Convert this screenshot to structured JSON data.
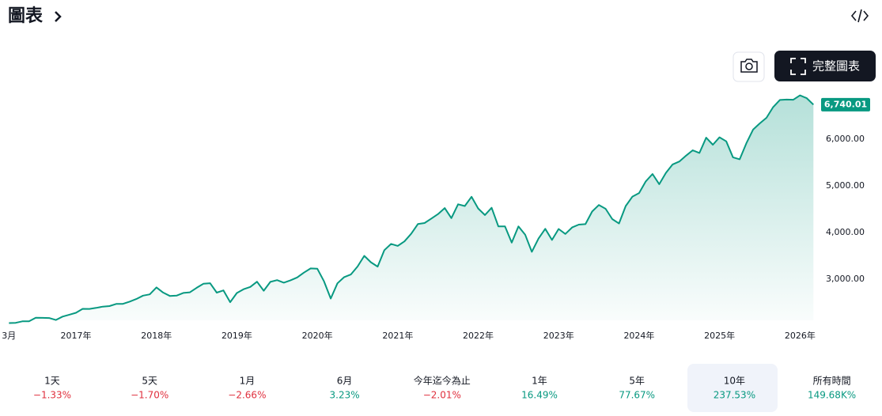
{
  "header": {
    "title": "圖表",
    "button": "完整圖表"
  },
  "chart_data": {
    "type": "area",
    "categories": [
      "3月",
      null,
      null,
      null,
      null,
      null,
      null,
      null,
      null,
      null,
      "2017年",
      null,
      null,
      null,
      null,
      null,
      null,
      null,
      null,
      null,
      null,
      null,
      "2018年",
      null,
      null,
      null,
      null,
      null,
      null,
      null,
      null,
      null,
      null,
      null,
      "2019年",
      null,
      null,
      null,
      null,
      null,
      null,
      null,
      null,
      null,
      null,
      null,
      "2020年",
      null,
      null,
      null,
      null,
      null,
      null,
      null,
      null,
      null,
      null,
      null,
      "2021年",
      null,
      null,
      null,
      null,
      null,
      null,
      null,
      null,
      null,
      null,
      null,
      "2022年",
      null,
      null,
      null,
      null,
      null,
      null,
      null,
      null,
      null,
      null,
      null,
      "2023年",
      null,
      null,
      null,
      null,
      null,
      null,
      null,
      null,
      null,
      null,
      null,
      "2024年",
      null,
      null,
      null,
      null,
      null,
      null,
      null,
      null,
      null,
      null,
      null,
      "2025年",
      null,
      null,
      null,
      null,
      null,
      null,
      null,
      null,
      null,
      null,
      null,
      "2026年",
      null,
      null
    ],
    "values": [
      2060,
      2065,
      2097,
      2099,
      2174,
      2171,
      2168,
      2126,
      2199,
      2239,
      2279,
      2364,
      2363,
      2384,
      2412,
      2423,
      2470,
      2472,
      2519,
      2575,
      2648,
      2674,
      2824,
      2714,
      2641,
      2648,
      2705,
      2718,
      2816,
      2902,
      2914,
      2712,
      2760,
      2507,
      2704,
      2784,
      2834,
      2946,
      2752,
      2942,
      2980,
      2926,
      2977,
      3038,
      3141,
      3231,
      3226,
      2954,
      2585,
      2912,
      3044,
      3100,
      3271,
      3500,
      3363,
      3270,
      3622,
      3756,
      3714,
      3811,
      3973,
      4181,
      4204,
      4298,
      4395,
      4523,
      4308,
      4605,
      4567,
      4766,
      4516,
      4374,
      4530,
      4132,
      4132,
      3785,
      4130,
      3955,
      3586,
      3872,
      4080,
      3840,
      4077,
      3970,
      4109,
      4169,
      4180,
      4450,
      4589,
      4508,
      4288,
      4194,
      4568,
      4770,
      4846,
      5096,
      5254,
      5036,
      5278,
      5460,
      5522,
      5648,
      5762,
      5705,
      6032,
      5882,
      6041,
      5955,
      5612,
      5569,
      5912,
      6205,
      6339,
      6460,
      6688,
      6840,
      6849,
      6845,
      6939,
      6879,
      6740.01
    ],
    "last_value_label": "6,740.01",
    "color": "#089981",
    "ylim": [
      2000,
      7000
    ],
    "yticks": [
      {
        "value": 3000,
        "label": "3,000.00"
      },
      {
        "value": 4000,
        "label": "4,000.00"
      },
      {
        "value": 5000,
        "label": "5,000.00"
      },
      {
        "value": 6000,
        "label": "6,000.00"
      }
    ]
  },
  "periods": [
    {
      "label": "1天",
      "change": "−1.33%"
    },
    {
      "label": "5天",
      "change": "−1.70%"
    },
    {
      "label": "1月",
      "change": "−2.66%"
    },
    {
      "label": "6月",
      "change": "3.23%"
    },
    {
      "label": "今年迄今為止",
      "change": "−2.01%"
    },
    {
      "label": "1年",
      "change": "16.49%"
    },
    {
      "label": "5年",
      "change": "77.67%"
    },
    {
      "label": "10年",
      "change": "237.53%"
    },
    {
      "label": "所有時間",
      "change": "149.68K%"
    }
  ]
}
